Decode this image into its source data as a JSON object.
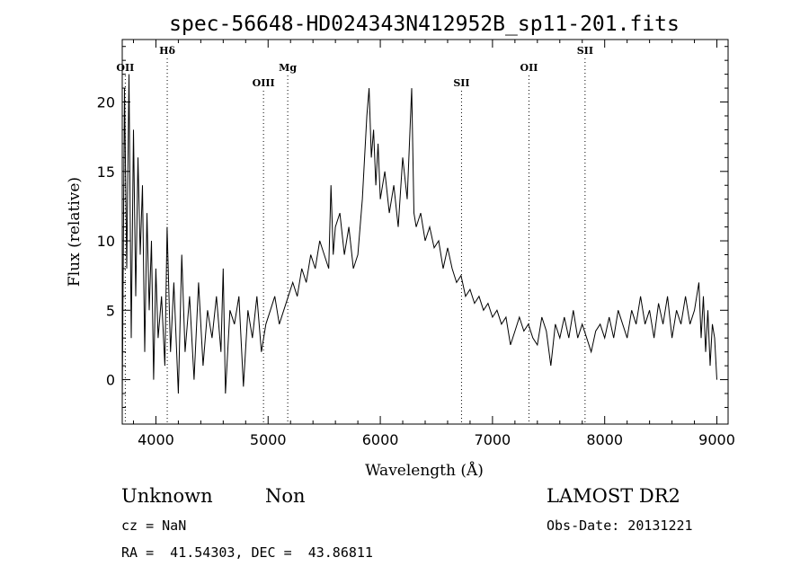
{
  "chart_data": {
    "type": "line",
    "title": "spec-56648-HD024343N412952B_sp11-201.fits",
    "xlabel": "Wavelength (Å)",
    "ylabel": "Flux (relative)",
    "xlim": [
      3700,
      9100
    ],
    "ylim": [
      -3.2,
      24.5
    ],
    "xticks": [
      4000,
      5000,
      6000,
      7000,
      8000,
      9000
    ],
    "yticks": [
      0,
      5,
      10,
      15,
      20
    ],
    "grid": false,
    "series": [
      {
        "x": [
          3700,
          3720,
          3740,
          3760,
          3780,
          3800,
          3820,
          3840,
          3860,
          3880,
          3900,
          3920,
          3940,
          3960,
          3980,
          4000,
          4020,
          4050,
          4080,
          4100,
          4130,
          4160,
          4200,
          4230,
          4260,
          4300,
          4340,
          4380,
          4420,
          4460,
          4500,
          4540,
          4580,
          4600,
          4620,
          4660,
          4700,
          4740,
          4780,
          4820,
          4860,
          4900,
          4940,
          4980,
          5020,
          5060,
          5100,
          5140,
          5180,
          5220,
          5260,
          5300,
          5340,
          5380,
          5420,
          5460,
          5500,
          5540,
          5560,
          5580,
          5600,
          5640,
          5680,
          5720,
          5760,
          5800,
          5840,
          5880,
          5900,
          5920,
          5940,
          5960,
          5980,
          6000,
          6040,
          6080,
          6120,
          6160,
          6200,
          6240,
          6280,
          6300,
          6320,
          6360,
          6400,
          6440,
          6480,
          6520,
          6560,
          6600,
          6640,
          6680,
          6720,
          6760,
          6800,
          6840,
          6880,
          6920,
          6960,
          7000,
          7040,
          7080,
          7120,
          7160,
          7200,
          7240,
          7280,
          7320,
          7360,
          7400,
          7440,
          7480,
          7520,
          7560,
          7600,
          7640,
          7680,
          7720,
          7760,
          7800,
          7840,
          7880,
          7920,
          7960,
          8000,
          8040,
          8080,
          8120,
          8160,
          8200,
          8240,
          8280,
          8320,
          8360,
          8400,
          8440,
          8480,
          8520,
          8560,
          8600,
          8640,
          8680,
          8720,
          8760,
          8800,
          8840,
          8860,
          8880,
          8900,
          8920,
          8940,
          8960,
          8980,
          9000
        ],
        "values": [
          -1.5,
          21,
          8,
          22,
          3,
          18,
          6,
          16,
          9,
          14,
          2,
          12,
          5,
          10,
          0,
          8,
          3,
          6,
          1,
          11,
          2,
          7,
          -1,
          9,
          2,
          6,
          0,
          7,
          1,
          5,
          3,
          6,
          2,
          8,
          -1,
          5,
          4,
          6,
          -0.5,
          5,
          3,
          6,
          2,
          4,
          5,
          6,
          4,
          5,
          6,
          7,
          6,
          8,
          7,
          9,
          8,
          10,
          9,
          8,
          14,
          9,
          11,
          12,
          9,
          11,
          8,
          9,
          13,
          19,
          21,
          16,
          18,
          14,
          17,
          13,
          15,
          12,
          14,
          11,
          16,
          13,
          21,
          12,
          11,
          12,
          10,
          11,
          9.5,
          10,
          8,
          9.5,
          8,
          7,
          7.5,
          6,
          6.5,
          5.5,
          6,
          5,
          5.5,
          4.5,
          5,
          4,
          4.5,
          2.5,
          3.5,
          4.5,
          3.5,
          4,
          3,
          2.5,
          4.5,
          3.5,
          1,
          4,
          3,
          4.5,
          3,
          5,
          3,
          4,
          3,
          2,
          3.5,
          4,
          3,
          4.5,
          3,
          5,
          4,
          3,
          5,
          4,
          6,
          4,
          5,
          3,
          5.5,
          4,
          6,
          3,
          5,
          4,
          6,
          4,
          5,
          7,
          3,
          6,
          2,
          5,
          1,
          4,
          3,
          0
        ]
      }
    ],
    "line_markers": [
      {
        "label": "OII",
        "x": 3727,
        "level": 1
      },
      {
        "label": "Hδ",
        "x": 4101,
        "level": 0
      },
      {
        "label": "OIII",
        "x": 4959,
        "level": 2
      },
      {
        "label": "Mg",
        "x": 5175,
        "level": 1
      },
      {
        "label": "SII",
        "x": 6724,
        "level": 2
      },
      {
        "label": "OII",
        "x": 7325,
        "level": 1
      },
      {
        "label": "SII",
        "x": 7825,
        "level": 0
      }
    ]
  },
  "footer": {
    "class": "Unknown",
    "subclass": "Non",
    "survey": "LAMOST DR2",
    "cz": "cz = NaN",
    "obs_date": "Obs-Date: 20131221",
    "coords": "RA =  41.54303, DEC =  43.86811"
  }
}
